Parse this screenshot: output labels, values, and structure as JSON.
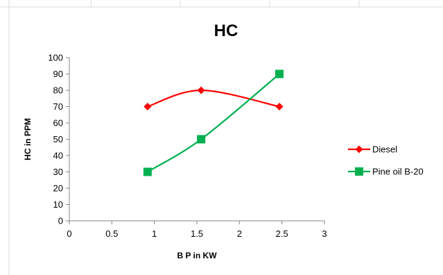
{
  "chart_data": {
    "type": "line",
    "title": "HC",
    "xlabel": "B P in KW",
    "ylabel": "HC in PPM",
    "xlim": [
      0,
      3
    ],
    "ylim": [
      0,
      100
    ],
    "x_ticks": [
      "0",
      "0.5",
      "1",
      "1.5",
      "2",
      "2.5",
      "3"
    ],
    "y_ticks": [
      "0",
      "10",
      "20",
      "30",
      "40",
      "50",
      "60",
      "70",
      "80",
      "90",
      "100"
    ],
    "legend_position": "right",
    "grid": false,
    "smooth": true,
    "series": [
      {
        "name": "Diesel",
        "color": "#ff0000",
        "marker": "diamond",
        "x": [
          0.92,
          1.55,
          2.47
        ],
        "y": [
          70,
          80,
          70
        ]
      },
      {
        "name": "Pine oil B-20",
        "color": "#00b050",
        "marker": "square",
        "x": [
          0.92,
          1.55,
          2.47
        ],
        "y": [
          30,
          50,
          90
        ]
      }
    ]
  }
}
